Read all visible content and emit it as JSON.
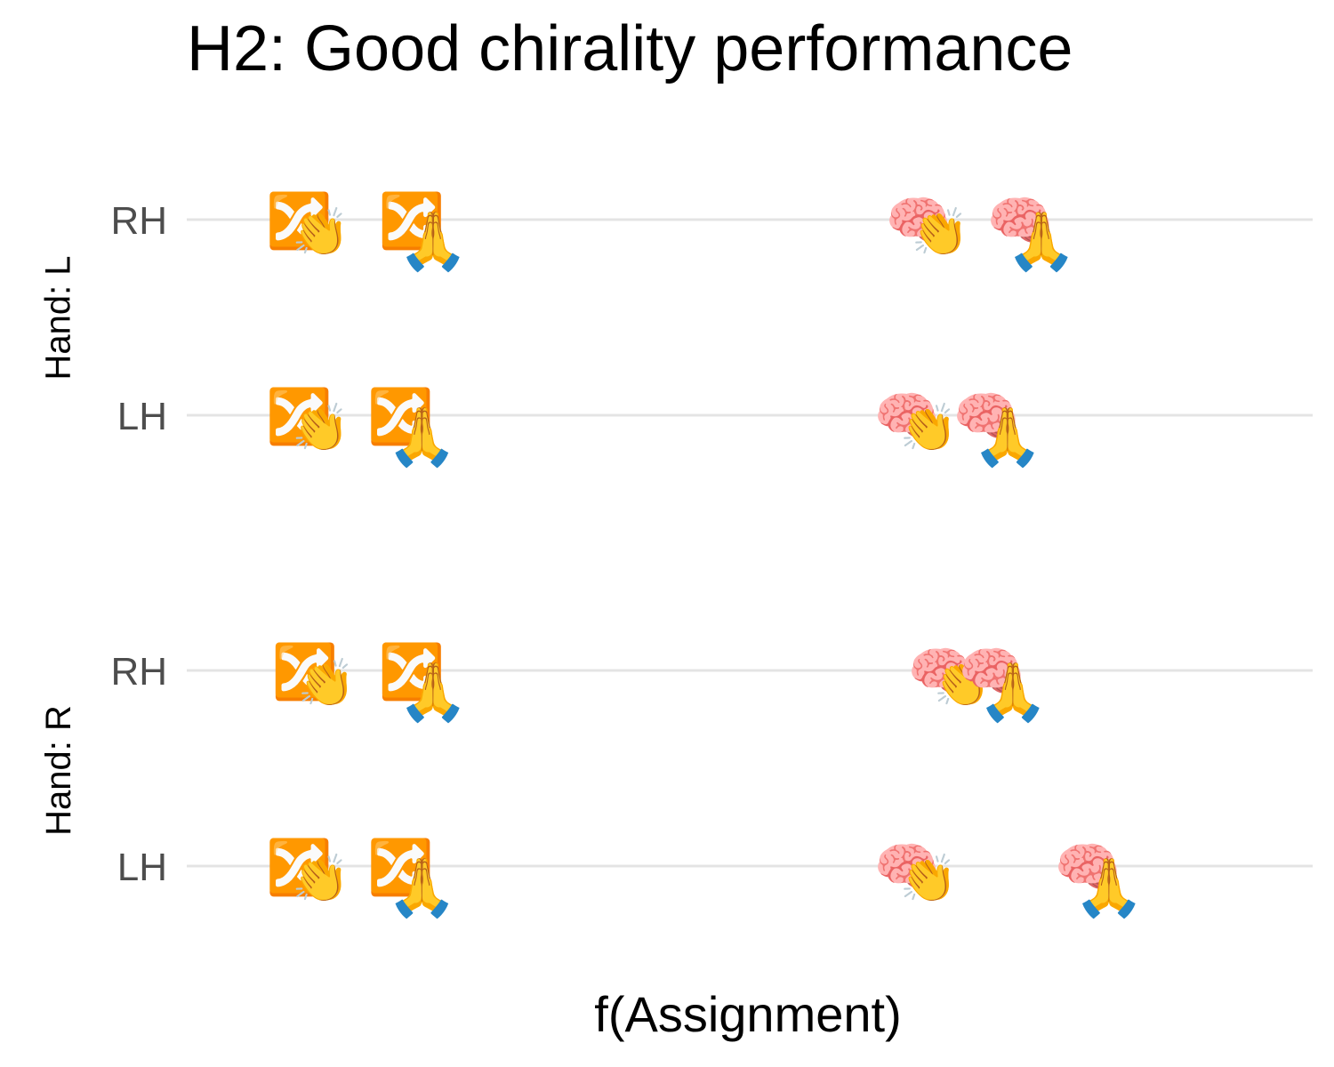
{
  "chart_data": {
    "type": "scatter",
    "title": "H2: Good chirality performance",
    "xlabel": "f(Assignment)",
    "ylabel": "",
    "grid": true,
    "legend": "none",
    "x_ticks_shown": false,
    "xlim": [
      0,
      1
    ],
    "facets": [
      {
        "label": "Hand: L",
        "rows": [
          "RH",
          "LH"
        ]
      },
      {
        "label": "Hand: R",
        "rows": [
          "RH",
          "LH"
        ]
      }
    ],
    "markers": {
      "random": "🔀",
      "brain": "🧠",
      "clap": "👏",
      "pray": "🙏"
    },
    "series": [
      {
        "facet": "Hand: L",
        "row": "RH",
        "points": [
          {
            "base": "random",
            "gesture": "clap",
            "x": 0.1
          },
          {
            "base": "random",
            "gesture": "pray",
            "x": 0.2
          },
          {
            "base": "brain",
            "gesture": "clap",
            "x": 0.65
          },
          {
            "base": "brain",
            "gesture": "pray",
            "x": 0.74
          }
        ]
      },
      {
        "facet": "Hand: L",
        "row": "LH",
        "points": [
          {
            "base": "random",
            "gesture": "clap",
            "x": 0.1
          },
          {
            "base": "random",
            "gesture": "pray",
            "x": 0.19
          },
          {
            "base": "brain",
            "gesture": "clap",
            "x": 0.64
          },
          {
            "base": "brain",
            "gesture": "pray",
            "x": 0.71
          }
        ]
      },
      {
        "facet": "Hand: R",
        "row": "RH",
        "points": [
          {
            "base": "random",
            "gesture": "clap",
            "x": 0.105
          },
          {
            "base": "random",
            "gesture": "pray",
            "x": 0.2
          },
          {
            "base": "brain",
            "gesture": "clap",
            "x": 0.67
          },
          {
            "base": "brain",
            "gesture": "pray",
            "x": 0.715
          }
        ]
      },
      {
        "facet": "Hand: R",
        "row": "LH",
        "points": [
          {
            "base": "random",
            "gesture": "clap",
            "x": 0.1
          },
          {
            "base": "random",
            "gesture": "pray",
            "x": 0.19
          },
          {
            "base": "brain",
            "gesture": "clap",
            "x": 0.64
          },
          {
            "base": "brain",
            "gesture": "pray",
            "x": 0.8
          }
        ]
      }
    ]
  }
}
